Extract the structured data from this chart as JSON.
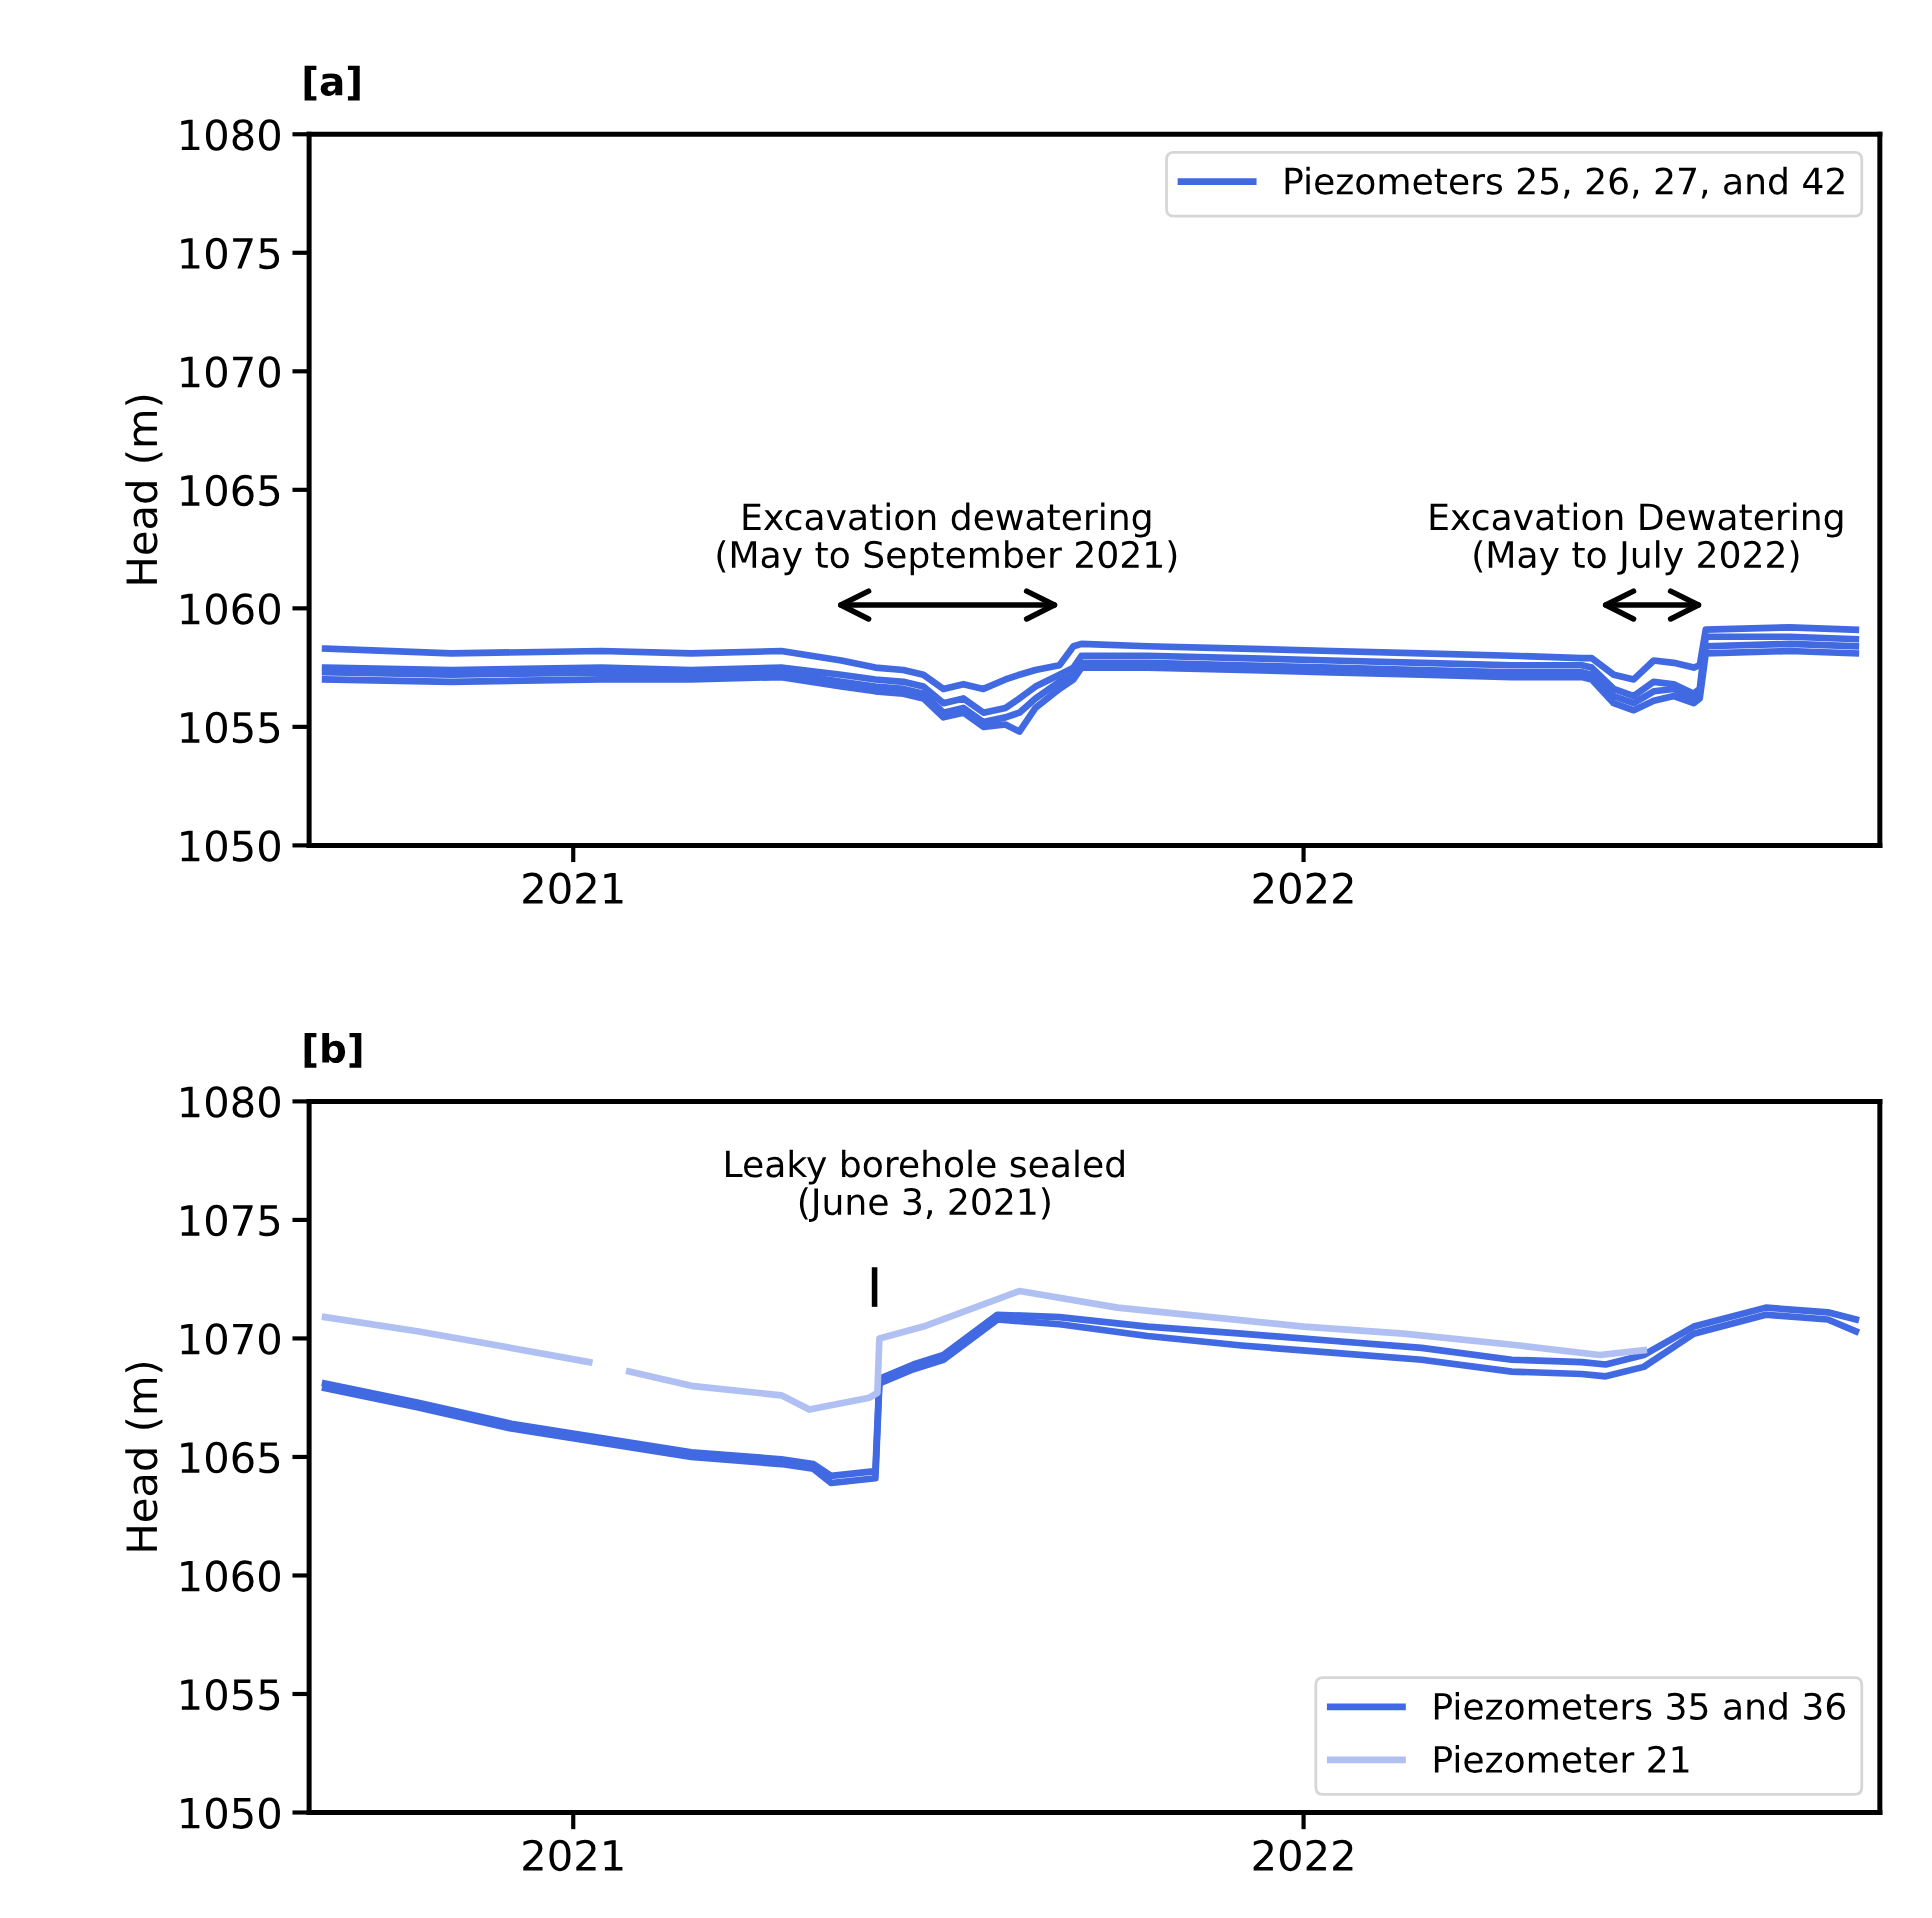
{
  "chart_data": [
    {
      "type": "line",
      "title": "[a]",
      "ylabel": "Head (m)",
      "x": [
        "2020-08-30",
        "2020-11-01",
        "2021-01-15",
        "2021-03-01",
        "2021-04-15",
        "2021-05-15",
        "2021-06-01",
        "2021-06-15",
        "2021-06-25",
        "2021-07-05",
        "2021-07-15",
        "2021-07-25",
        "2021-08-05",
        "2021-08-12",
        "2021-08-20",
        "2021-09-01",
        "2021-09-08",
        "2021-09-12",
        "2021-10-15",
        "2021-12-01",
        "2022-01-15",
        "2022-03-01",
        "2022-04-15",
        "2022-05-20",
        "2022-05-25",
        "2022-06-05",
        "2022-06-15",
        "2022-06-25",
        "2022-07-05",
        "2022-07-15",
        "2022-07-18",
        "2022-07-21",
        "2022-09-01",
        "2022-10-04"
      ],
      "series": [
        {
          "name": "Piezometers 25, 26, 27, and 42",
          "color": "#4169e1",
          "values": [
            1058.3,
            1058.1,
            1058.2,
            1058.1,
            1058.2,
            1057.8,
            1057.5,
            1057.4,
            1057.2,
            1056.6,
            1056.8,
            1056.6,
            1057.0,
            1057.2,
            1057.4,
            1057.6,
            1058.4,
            1058.5,
            1058.4,
            1058.3,
            1058.2,
            1058.1,
            1058.0,
            1057.9,
            1057.9,
            1057.2,
            1057.0,
            1057.8,
            1057.7,
            1057.5,
            1057.6,
            1059.1,
            1059.2,
            1059.1
          ]
        },
        {
          "color": "#4169e1",
          "values": [
            1057.5,
            1057.4,
            1057.5,
            1057.4,
            1057.5,
            1057.2,
            1057.0,
            1056.9,
            1056.7,
            1056.0,
            1056.2,
            1055.6,
            1055.8,
            1056.2,
            1056.7,
            1057.2,
            1057.5,
            1058.0,
            1058.0,
            1057.9,
            1057.8,
            1057.7,
            1057.6,
            1057.6,
            1057.5,
            1056.6,
            1056.3,
            1056.9,
            1056.8,
            1056.4,
            1056.6,
            1058.8,
            1058.8,
            1058.7
          ]
        },
        {
          "color": "#4169e1",
          "values": [
            1057.3,
            1057.2,
            1057.3,
            1057.2,
            1057.3,
            1056.9,
            1056.7,
            1056.6,
            1056.4,
            1055.6,
            1055.8,
            1055.2,
            1055.4,
            1055.6,
            1056.2,
            1056.9,
            1057.2,
            1057.7,
            1057.7,
            1057.6,
            1057.5,
            1057.4,
            1057.3,
            1057.3,
            1057.2,
            1056.3,
            1056.0,
            1056.5,
            1056.6,
            1056.2,
            1056.4,
            1058.4,
            1058.5,
            1058.4
          ]
        },
        {
          "color": "#4169e1",
          "values": [
            1057.0,
            1056.9,
            1057.0,
            1057.0,
            1057.1,
            1056.7,
            1056.5,
            1056.4,
            1056.2,
            1055.4,
            1055.6,
            1055.0,
            1055.1,
            1054.8,
            1055.8,
            1056.6,
            1057.0,
            1057.5,
            1057.5,
            1057.4,
            1057.3,
            1057.2,
            1057.1,
            1057.1,
            1057.0,
            1056.0,
            1055.7,
            1056.1,
            1056.3,
            1056.0,
            1056.2,
            1058.1,
            1058.2,
            1058.1
          ]
        }
      ],
      "xlim": [
        "2020-08-22",
        "2022-10-16"
      ],
      "xticks": [
        {
          "value": "2021-01-01",
          "label": "2021"
        },
        {
          "value": "2022-01-01",
          "label": "2022"
        }
      ],
      "ylim": [
        1050,
        1080
      ],
      "yticks": [
        1050,
        1055,
        1060,
        1065,
        1070,
        1075,
        1080
      ],
      "annotations": [
        "Excavation dewatering\n(May to September 2021)",
        "Excavation Dewatering\n(May to July 2022)"
      ],
      "legend": "top right",
      "grid": false
    },
    {
      "type": "line",
      "title": "[b]",
      "ylabel": "Head (m)",
      "series": [
        {
          "name": "Piezometers 35 and 36",
          "color": "#4169e1",
          "x": [
            "2020-08-30",
            "2020-10-15",
            "2020-12-01",
            "2021-01-15",
            "2021-03-01",
            "2021-04-15",
            "2021-05-01",
            "2021-05-10",
            "2021-06-01",
            "2021-06-03",
            "2021-06-20",
            "2021-07-05",
            "2021-08-01",
            "2021-09-01",
            "2021-10-15",
            "2021-12-01",
            "2022-01-15",
            "2022-03-01",
            "2022-04-15",
            "2022-05-20",
            "2022-06-01",
            "2022-06-20",
            "2022-07-15",
            "2022-08-20",
            "2022-09-20",
            "2022-10-04"
          ],
          "values": [
            1068.1,
            1067.3,
            1066.4,
            1065.8,
            1065.2,
            1064.9,
            1064.7,
            1064.2,
            1064.4,
            1068.3,
            1068.9,
            1069.3,
            1071.0,
            1070.9,
            1070.5,
            1070.2,
            1069.9,
            1069.6,
            1069.1,
            1069.0,
            1068.9,
            1069.3,
            1070.5,
            1071.3,
            1071.1,
            1070.8
          ]
        },
        {
          "color": "#4169e1",
          "x": [
            "2020-08-30",
            "2020-10-15",
            "2020-12-01",
            "2021-01-15",
            "2021-03-01",
            "2021-04-15",
            "2021-05-01",
            "2021-05-10",
            "2021-06-01",
            "2021-06-03",
            "2021-06-20",
            "2021-07-05",
            "2021-08-01",
            "2021-09-01",
            "2021-10-15",
            "2021-12-01",
            "2022-01-15",
            "2022-03-01",
            "2022-04-15",
            "2022-05-20",
            "2022-06-01",
            "2022-06-20",
            "2022-07-15",
            "2022-08-20",
            "2022-09-20",
            "2022-10-04"
          ],
          "values": [
            1067.9,
            1067.1,
            1066.2,
            1065.6,
            1065.0,
            1064.7,
            1064.5,
            1063.9,
            1064.1,
            1068.1,
            1068.7,
            1069.1,
            1070.8,
            1070.6,
            1070.1,
            1069.7,
            1069.4,
            1069.1,
            1068.6,
            1068.5,
            1068.4,
            1068.8,
            1070.2,
            1071.0,
            1070.8,
            1070.3
          ]
        },
        {
          "name": "Piezometer 21",
          "color": "#b0c0f2",
          "x": [
            "2020-08-30",
            "2020-10-15",
            "2020-12-01",
            "2021-01-09",
            "2021-01-10",
            "2021-01-29",
            "2021-03-01",
            "2021-04-15",
            "2021-04-29",
            "2021-05-29",
            "2021-06-02",
            "2021-06-03",
            "2021-06-25",
            "2021-08-12",
            "2021-09-30",
            "2022-01-01",
            "2022-02-20",
            "2022-04-19",
            "2022-05-29",
            "2022-06-20"
          ],
          "values": [
            1070.9,
            1070.3,
            1069.6,
            1069.0,
            null,
            1068.6,
            1068.0,
            1067.6,
            1067.0,
            1067.5,
            1067.7,
            1070.0,
            1070.5,
            1072.0,
            1071.3,
            1070.5,
            1070.2,
            1069.7,
            1069.3,
            1069.5
          ]
        }
      ],
      "xlim": [
        "2020-08-22",
        "2022-10-16"
      ],
      "xticks": [
        {
          "value": "2021-01-01",
          "label": "2021"
        },
        {
          "value": "2022-01-01",
          "label": "2022"
        }
      ],
      "ylim": [
        1050,
        1080
      ],
      "yticks": [
        1050,
        1055,
        1060,
        1065,
        1070,
        1075,
        1080
      ],
      "annotations": [
        "Leaky borehole sealed\n(June 3, 2021)"
      ],
      "legend": "bottom right",
      "grid": false
    }
  ]
}
